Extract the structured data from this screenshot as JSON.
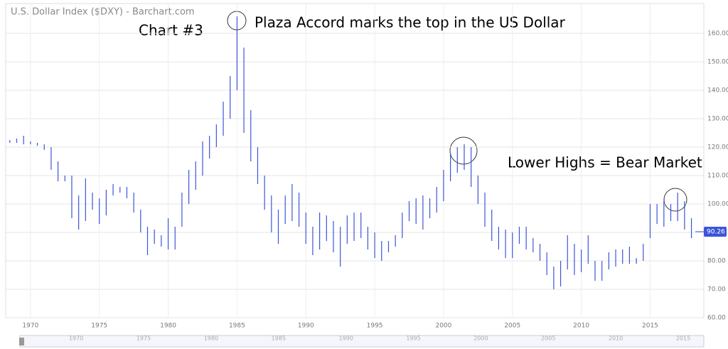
{
  "chart_data": {
    "type": "range-bar",
    "title": "U.S. Dollar Index ($DXY) - Barchart.com",
    "annotations": [
      "Chart #3",
      "Plaza Accord marks the top in the US Dollar",
      "Lower Highs = Bear Market"
    ],
    "color": "#3b55d9",
    "grid": true,
    "last_value": 90.26,
    "xlim": [
      1968.2,
      2018.9
    ],
    "xticks": [
      1970,
      1975,
      1980,
      1985,
      1990,
      1995,
      2000,
      2005,
      2010,
      2015
    ],
    "ylim": [
      60,
      170.5
    ],
    "yticks": [
      {
        "value": 60,
        "label": "60.00"
      },
      {
        "value": 70,
        "label": "70.00"
      },
      {
        "value": 80,
        "label": "80.00"
      },
      {
        "value": 90,
        "label": "90.00"
      },
      {
        "value": 100,
        "label": "100.00"
      },
      {
        "value": 110,
        "label": "110.00"
      },
      {
        "value": 120,
        "label": "120.00"
      },
      {
        "value": 130,
        "label": "130.00"
      },
      {
        "value": 140,
        "label": "140.00"
      },
      {
        "value": 150,
        "label": "150.00"
      },
      {
        "value": 160,
        "label": "160.00"
      }
    ],
    "x": [
      1968.5,
      1969,
      1969.5,
      1970,
      1970.5,
      1971,
      1971.5,
      1972,
      1972.5,
      1973,
      1973.5,
      1974,
      1974.5,
      1975,
      1975.5,
      1976,
      1976.5,
      1977,
      1977.5,
      1978,
      1978.5,
      1979,
      1979.5,
      1980,
      1980.5,
      1981,
      1981.5,
      1982,
      1982.5,
      1983,
      1983.5,
      1984,
      1984.5,
      1985,
      1985.5,
      1986,
      1986.5,
      1987,
      1987.5,
      1988,
      1988.5,
      1989,
      1989.5,
      1990,
      1990.5,
      1991,
      1991.5,
      1992,
      1992.5,
      1993,
      1993.5,
      1994,
      1994.5,
      1995,
      1995.5,
      1996,
      1996.5,
      1997,
      1997.5,
      1998,
      1998.5,
      1999,
      1999.5,
      2000,
      2000.5,
      2001,
      2001.5,
      2002,
      2002.5,
      2003,
      2003.5,
      2004,
      2004.5,
      2005,
      2005.5,
      2006,
      2006.5,
      2007,
      2007.5,
      2008,
      2008.5,
      2009,
      2009.5,
      2010,
      2010.5,
      2011,
      2011.5,
      2012,
      2012.5,
      2013,
      2013.5,
      2014,
      2014.5,
      2015,
      2015.5,
      2016,
      2016.5,
      2017,
      2017.5,
      2018
    ],
    "high": [
      122.5,
      123,
      124,
      122,
      121.5,
      121,
      120,
      115,
      110,
      110,
      103,
      109,
      104,
      102,
      105,
      107,
      106,
      106,
      104,
      98,
      92,
      91,
      89,
      95,
      92,
      104,
      112,
      115,
      122,
      124,
      128,
      136,
      145,
      166,
      155,
      133,
      120,
      110,
      103,
      98,
      103,
      107,
      104,
      97,
      92,
      97,
      96,
      94,
      92,
      96,
      97,
      97,
      92,
      90,
      87,
      87,
      89,
      97,
      101,
      102,
      103,
      102,
      106,
      112,
      118,
      120,
      121,
      120,
      110,
      104,
      98,
      92,
      91,
      90,
      92,
      92,
      88,
      86,
      83,
      78,
      80,
      89,
      86,
      84,
      89,
      80,
      80,
      83,
      84,
      84,
      85,
      81,
      86,
      100,
      100,
      101,
      100,
      104,
      101,
      95
    ],
    "low": [
      121.5,
      121.5,
      121,
      121,
      120.5,
      119,
      112,
      108,
      108,
      95,
      91,
      94,
      98,
      93,
      96,
      103,
      104,
      102,
      97,
      90,
      82,
      86,
      85,
      84,
      84,
      92,
      100,
      105,
      110,
      116,
      120,
      124,
      130,
      140,
      125,
      115,
      107,
      98,
      90,
      86,
      93,
      94,
      92,
      86,
      82,
      84,
      87,
      83,
      78,
      86,
      87,
      88,
      84,
      81,
      80,
      83,
      85,
      88,
      94,
      93,
      91,
      95,
      97,
      101,
      108,
      111,
      112,
      106,
      100,
      92,
      87,
      84,
      81,
      81,
      86,
      84,
      83,
      80,
      75,
      70,
      71,
      77,
      75,
      76,
      79,
      73,
      73,
      77,
      78,
      79,
      79,
      79,
      80,
      88,
      93,
      92,
      94,
      94,
      91,
      88
    ]
  }
}
